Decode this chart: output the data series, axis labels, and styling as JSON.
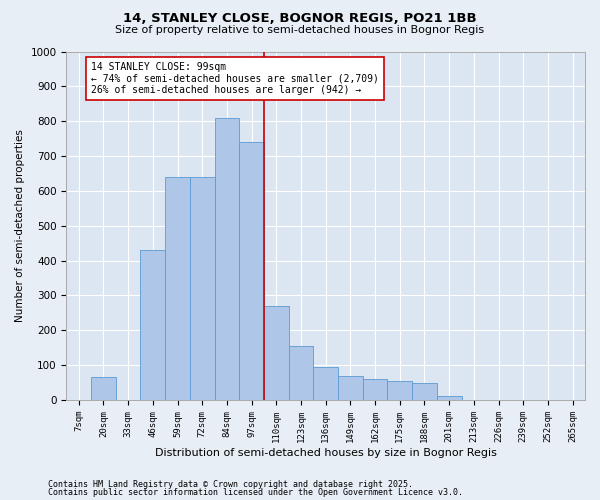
{
  "title1": "14, STANLEY CLOSE, BOGNOR REGIS, PO21 1BB",
  "title2": "Size of property relative to semi-detached houses in Bognor Regis",
  "xlabel": "Distribution of semi-detached houses by size in Bognor Regis",
  "ylabel": "Number of semi-detached properties",
  "categories": [
    "7sqm",
    "20sqm",
    "33sqm",
    "46sqm",
    "59sqm",
    "72sqm",
    "84sqm",
    "97sqm",
    "110sqm",
    "123sqm",
    "136sqm",
    "149sqm",
    "162sqm",
    "175sqm",
    "188sqm",
    "201sqm",
    "213sqm",
    "226sqm",
    "239sqm",
    "252sqm",
    "265sqm"
  ],
  "bar_values": [
    0,
    65,
    0,
    430,
    640,
    640,
    810,
    740,
    270,
    155,
    95,
    70,
    60,
    55,
    50,
    10,
    0,
    0,
    0,
    0,
    0
  ],
  "bar_color": "#aec6e8",
  "bar_edge_color": "#5b9bd5",
  "vline_x": 7.5,
  "vline_color": "#cc0000",
  "annotation_text": "14 STANLEY CLOSE: 99sqm\n← 74% of semi-detached houses are smaller (2,709)\n26% of semi-detached houses are larger (942) →",
  "annotation_box_color": "#ffffff",
  "annotation_box_edge": "#cc0000",
  "footnote1": "Contains HM Land Registry data © Crown copyright and database right 2025.",
  "footnote2": "Contains public sector information licensed under the Open Government Licence v3.0.",
  "bg_color": "#e8eef6",
  "plot_bg_color": "#dce6f2",
  "grid_color": "#ffffff",
  "ylim": [
    0,
    1000
  ],
  "yticks": [
    0,
    100,
    200,
    300,
    400,
    500,
    600,
    700,
    800,
    900,
    1000
  ]
}
